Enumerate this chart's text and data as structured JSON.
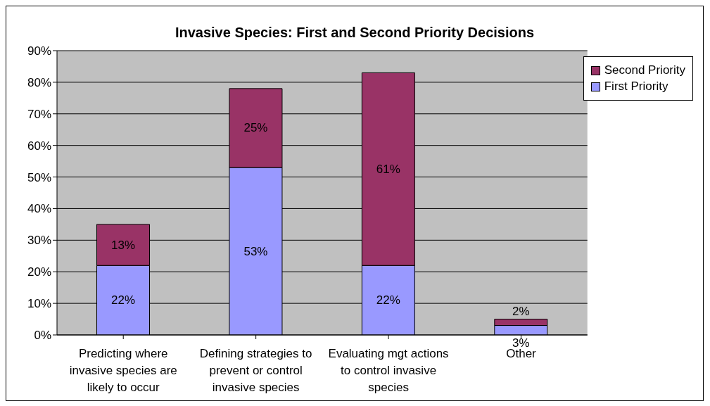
{
  "chart_data": {
    "type": "bar",
    "title": "Invasive Species: First and Second Priority Decisions",
    "categories": [
      "Predicting where invasive species are likely to occur",
      "Defining strategies to prevent or control invasive species",
      "Evaluating mgt actions to control invasive species",
      "Other"
    ],
    "stacked": true,
    "series": [
      {
        "name": "First Priority",
        "color": "#9999ff",
        "values": [
          22,
          53,
          22,
          3
        ],
        "value_labels": [
          "22%",
          "53%",
          "22%",
          "3%"
        ]
      },
      {
        "name": "Second Priority",
        "color": "#993366",
        "values": [
          13,
          25,
          61,
          2
        ],
        "value_labels": [
          "13%",
          "25%",
          "61%",
          "2%"
        ]
      }
    ],
    "ylim": [
      0,
      90
    ],
    "yticks": [
      {
        "value": 0,
        "label": "0%"
      },
      {
        "value": 10,
        "label": "10%"
      },
      {
        "value": 20,
        "label": "20%"
      },
      {
        "value": 30,
        "label": "30%"
      },
      {
        "value": 40,
        "label": "40%"
      },
      {
        "value": 50,
        "label": "50%"
      },
      {
        "value": 60,
        "label": "60%"
      },
      {
        "value": 70,
        "label": "70%"
      },
      {
        "value": 80,
        "label": "80%"
      },
      {
        "value": 90,
        "label": "90%"
      }
    ],
    "grid": "y",
    "legend": "top right"
  }
}
